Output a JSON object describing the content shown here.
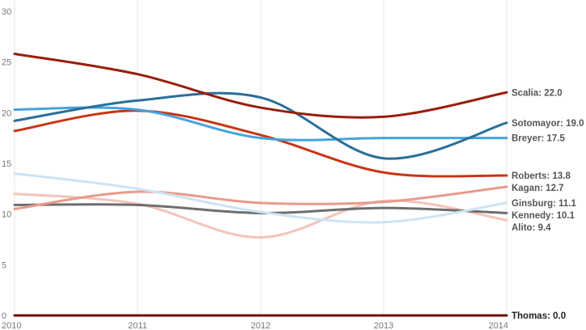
{
  "chart_data": {
    "type": "line",
    "x": [
      2010,
      2011,
      2012,
      2013,
      2014
    ],
    "x_tick_labels": [
      "2010",
      "2011",
      "2012",
      "2013",
      "2014"
    ],
    "y_tick_labels": [
      "0",
      "5",
      "10",
      "15",
      "20",
      "25",
      "30"
    ],
    "y_ticks": [
      0,
      5,
      10,
      15,
      20,
      25,
      30
    ],
    "xlim": [
      2010,
      2014
    ],
    "ylim": [
      0,
      30
    ],
    "grid": "vertical",
    "title": "",
    "xlabel": "",
    "ylabel": "",
    "series": [
      {
        "name": "Thomas",
        "label": "Thomas: 0.0",
        "color": "#6b0f05",
        "values": [
          0.0,
          0.0,
          0.0,
          0.0,
          0.0
        ]
      },
      {
        "name": "Alito",
        "label": "Alito: 9.4",
        "color": "#f3c4bb",
        "values": [
          12.0,
          11.0,
          7.7,
          11.3,
          9.4
        ]
      },
      {
        "name": "Kennedy",
        "label": "Kennedy: 10.1",
        "color": "#6e6e6e",
        "values": [
          10.9,
          10.9,
          10.1,
          10.6,
          10.1
        ]
      },
      {
        "name": "Kagan",
        "label": "Kagan: 12.7",
        "color": "#e89b8b",
        "values": [
          10.5,
          12.2,
          11.1,
          11.2,
          12.7
        ]
      },
      {
        "name": "Ginsburg",
        "label": "Ginsburg: 11.1",
        "color": "#cfe3f2",
        "values": [
          14.0,
          12.5,
          10.2,
          9.2,
          11.1
        ]
      },
      {
        "name": "Roberts",
        "label": "Roberts: 13.8",
        "color": "#c93417",
        "values": [
          18.2,
          20.2,
          17.8,
          14.1,
          13.8
        ]
      },
      {
        "name": "Breyer",
        "label": "Breyer: 17.5",
        "color": "#46a3dc",
        "values": [
          20.3,
          20.3,
          17.5,
          17.5,
          17.5
        ]
      },
      {
        "name": "Sotomayor",
        "label": "Sotomayor: 19.0",
        "color": "#2a6f98",
        "values": [
          19.2,
          21.2,
          21.5,
          15.5,
          19.0
        ]
      },
      {
        "name": "Scalia",
        "label": "Scalia: 22.0",
        "color": "#9a1d0a",
        "values": [
          25.8,
          23.8,
          20.5,
          19.6,
          22.0
        ]
      }
    ]
  }
}
